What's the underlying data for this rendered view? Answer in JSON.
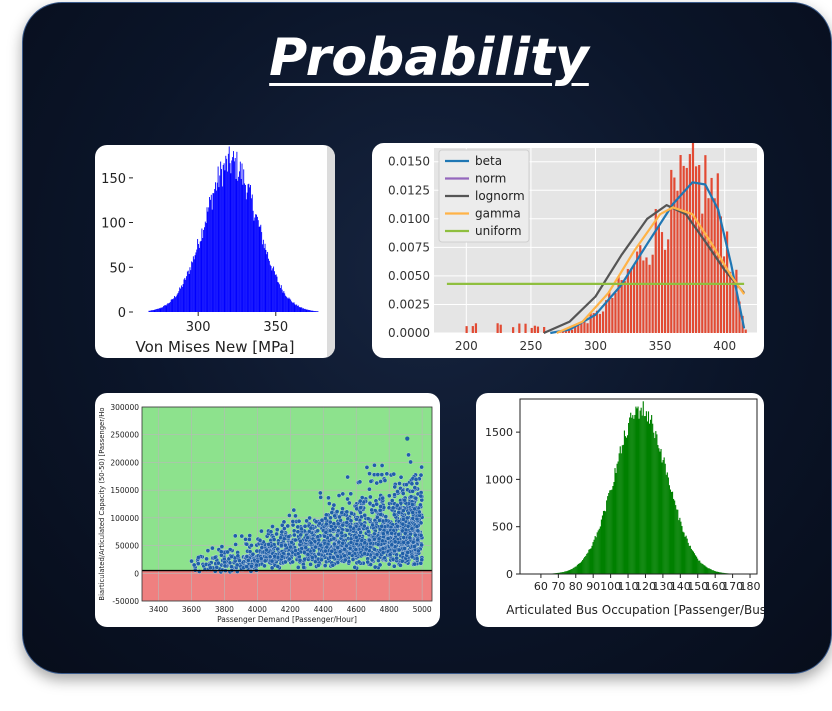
{
  "title": "Probability",
  "chart_data": [
    {
      "id": "c1",
      "type": "bar",
      "subtype": "histogram",
      "xlabel": "Von Mises New [MPa]",
      "ylabel": "",
      "xlim": [
        258,
        383
      ],
      "ylim": [
        0,
        180
      ],
      "xticks": [
        300,
        350
      ],
      "yticks": [
        0,
        50,
        100,
        150
      ],
      "bar_color": "#0000ff",
      "distribution": {
        "shape": "normal",
        "mean": 321,
        "sd": 17,
        "peak": 172
      }
    },
    {
      "id": "c2",
      "type": "bar",
      "subtype": "histogram-with-fits",
      "xlim": [
        175,
        425
      ],
      "ylim": [
        0,
        0.0162
      ],
      "xticks": [
        200,
        250,
        300,
        350,
        400
      ],
      "yticks": [
        "0.0000",
        "0.0025",
        "0.0050",
        "0.0075",
        "0.0100",
        "0.0125",
        "0.0150"
      ],
      "grid": true,
      "legend_position": "top-left",
      "bar_color": "#e24a33",
      "series": [
        {
          "name": "beta",
          "color": "#1f77b4",
          "x": [
            265,
            280,
            300,
            320,
            340,
            360,
            375,
            385,
            395,
            405,
            415
          ],
          "y": [
            0,
            0.0003,
            0.0016,
            0.0042,
            0.0078,
            0.0113,
            0.0132,
            0.013,
            0.0108,
            0.006,
            0.0004
          ]
        },
        {
          "name": "norm",
          "color": "#9467bd",
          "x": [],
          "y": []
        },
        {
          "name": "lognorm",
          "color": "#555555",
          "x": [
            260,
            280,
            300,
            320,
            340,
            355,
            370,
            385,
            400,
            415
          ],
          "y": [
            0,
            0.001,
            0.0032,
            0.0068,
            0.01,
            0.0112,
            0.0104,
            0.008,
            0.0055,
            0.0035
          ]
        },
        {
          "name": "gamma",
          "color": "#ffb347",
          "x": [
            270,
            290,
            310,
            330,
            350,
            360,
            375,
            390,
            405,
            415
          ],
          "y": [
            0,
            0.001,
            0.0035,
            0.0072,
            0.0104,
            0.011,
            0.0104,
            0.0078,
            0.005,
            0.0034
          ]
        },
        {
          "name": "uniform",
          "color": "#8fbf3f",
          "x": [
            185,
            415
          ],
          "y": [
            0.0043,
            0.0043
          ]
        }
      ]
    },
    {
      "id": "c3",
      "type": "scatter",
      "xlabel": "Passenger Demand [Passenger/Hour]",
      "ylabel": "Biarticulated/Articulated Capacity (50-50) [Passenger/Ho",
      "xlim": [
        3300,
        5060
      ],
      "ylim": [
        -50000,
        300000
      ],
      "xticks": [
        3400,
        3600,
        3800,
        4000,
        4200,
        4400,
        4600,
        4800,
        5000
      ],
      "yticks": [
        -50000,
        0,
        50000,
        100000,
        150000,
        200000,
        250000,
        300000
      ],
      "grid": true,
      "threshold_y": 5000,
      "colors": {
        "points": "#1f5fa8",
        "above": "#8de28d",
        "below": "#ef8080"
      }
    },
    {
      "id": "c4",
      "type": "bar",
      "subtype": "histogram",
      "xlabel": "Articulated Bus Occupation [Passenger/Bus]",
      "ylabel": "",
      "xlim": [
        48,
        184
      ],
      "ylim": [
        0,
        1850
      ],
      "xticks": [
        60,
        70,
        80,
        90,
        100,
        110,
        120,
        130,
        140,
        150,
        160,
        170,
        180
      ],
      "yticks": [
        0,
        500,
        1000,
        1500
      ],
      "bar_color": "#008000",
      "distribution": {
        "shape": "normal",
        "mean": 117,
        "sd": 15,
        "peak": 1760
      }
    }
  ]
}
